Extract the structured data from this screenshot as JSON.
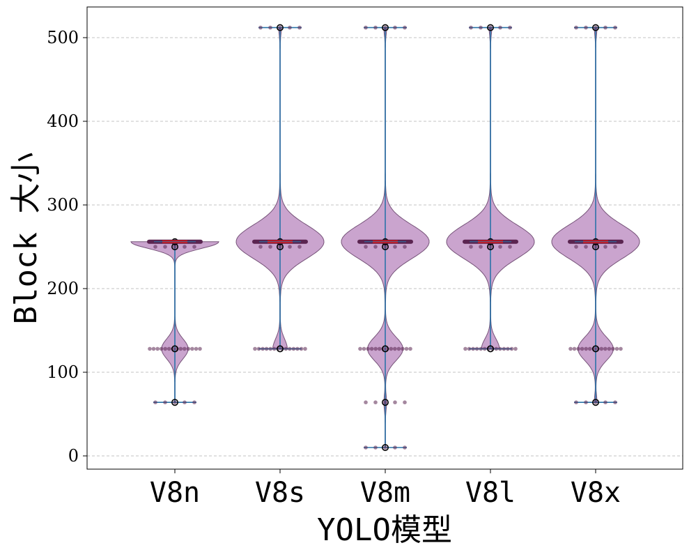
{
  "chart_data": {
    "type": "violin",
    "categories": [
      "V8n",
      "V8s",
      "V8m",
      "V8l",
      "V8x"
    ],
    "xlabel": "YOLO模型",
    "ylabel": "Block 大小",
    "ylim": [
      -15,
      538
    ],
    "yticks": [
      0,
      100,
      200,
      300,
      400,
      500
    ],
    "grid": "y-dashed",
    "colors": {
      "violin_fill": "#c8a0cc",
      "violin_edge": "#6f4a72",
      "line": "#2a73a8",
      "median": "#e01010",
      "points": "#5a2450"
    },
    "series": [
      {
        "name": "V8n",
        "min": 64,
        "max": 256,
        "median": 256,
        "mean": 250,
        "q1": 128,
        "q3": 256,
        "modes": [
          [
            256,
            1.0,
            8
          ],
          [
            128,
            0.3,
            12
          ]
        ],
        "points": [
          64,
          128,
          250,
          256
        ]
      },
      {
        "name": "V8s",
        "min": 128,
        "max": 512,
        "median": 256,
        "mean": 250,
        "q1": 128,
        "q3": 512,
        "modes": [
          [
            256,
            0.75,
            20
          ],
          [
            128,
            0.12,
            12
          ],
          [
            512,
            0.02,
            8
          ]
        ],
        "points": [
          128,
          250,
          256,
          512
        ]
      },
      {
        "name": "V8m",
        "min": 10,
        "max": 512,
        "median": 256,
        "mean": 250,
        "q1": 128,
        "q3": 256,
        "modes": [
          [
            256,
            0.75,
            20
          ],
          [
            128,
            0.3,
            14
          ],
          [
            512,
            0.02,
            8
          ],
          [
            64,
            0.02,
            8
          ]
        ],
        "points": [
          10,
          64,
          128,
          250,
          256,
          512
        ]
      },
      {
        "name": "V8l",
        "min": 128,
        "max": 512,
        "median": 256,
        "mean": 250,
        "q1": 128,
        "q3": 512,
        "modes": [
          [
            256,
            0.75,
            20
          ],
          [
            128,
            0.15,
            12
          ],
          [
            512,
            0.02,
            8
          ]
        ],
        "points": [
          128,
          250,
          256,
          512
        ]
      },
      {
        "name": "V8x",
        "min": 64,
        "max": 512,
        "median": 256,
        "mean": 250,
        "q1": 128,
        "q3": 256,
        "modes": [
          [
            256,
            0.75,
            20
          ],
          [
            128,
            0.3,
            14
          ],
          [
            512,
            0.02,
            8
          ],
          [
            64,
            0.02,
            8
          ]
        ],
        "points": [
          64,
          128,
          250,
          256,
          512
        ]
      }
    ]
  }
}
